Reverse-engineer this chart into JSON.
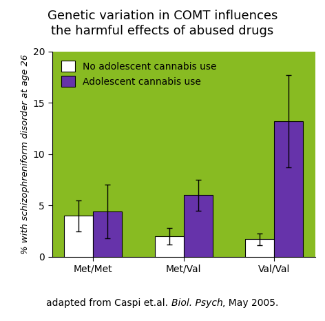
{
  "title_line1": "Genetic variation in COMT influences",
  "title_line2": "the harmful effects of abused drugs",
  "subtitle_normal1": "adapted from Caspi et.al. ",
  "subtitle_italic": "Biol. Psych",
  "subtitle_normal2": ", May 2005.",
  "categories": [
    "Met/Met",
    "Met/Val",
    "Val/Val"
  ],
  "no_cannabis_values": [
    4.0,
    2.0,
    1.7
  ],
  "no_cannabis_errors": [
    1.5,
    0.8,
    0.6
  ],
  "cannabis_values": [
    4.4,
    6.0,
    13.2
  ],
  "cannabis_errors": [
    2.6,
    1.5,
    4.5
  ],
  "no_cannabis_color": "#ffffff",
  "cannabis_color": "#6633aa",
  "background_color": "#88bb22",
  "bar_edge_color": "#000000",
  "ylabel": "% with schizophreniform disorder at age 26",
  "ylim": [
    0,
    20
  ],
  "yticks": [
    0,
    5,
    10,
    15,
    20
  ],
  "legend_label_no": "No adolescent cannabis use",
  "legend_label_yes": "Adolescent cannabis use",
  "bar_width": 0.32,
  "title_fontsize": 13,
  "axis_fontsize": 9.5,
  "tick_fontsize": 10,
  "legend_fontsize": 10,
  "subtitle_fontsize": 10
}
